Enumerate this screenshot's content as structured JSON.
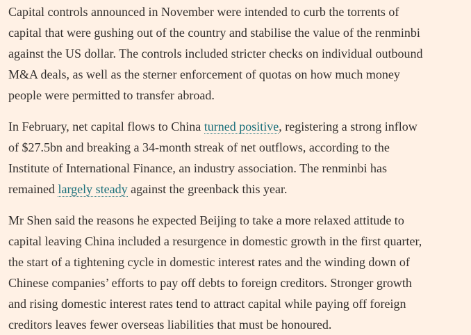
{
  "paragraphs": [
    {
      "lines": [
        [
          "Capital controls announced in November were intended to curb the torrents of"
        ],
        [
          "capital that were gushing out of the country and stabilise the value of the renminbi"
        ],
        [
          "against the US dollar. The controls included stricter checks on individual outbound"
        ],
        [
          "M&A deals, as well as the sterner enforcement of quotas on how much money"
        ],
        [
          "people were permitted to transfer abroad."
        ]
      ]
    },
    {
      "lines": [
        [
          "In February, net capital flows to China ",
          {
            "text": "turned positive",
            "link": true
          },
          ", registering a strong inflow"
        ],
        [
          "of $27.5bn and breaking a 34-month streak of net outflows, according to the"
        ],
        [
          "Institute of International Finance, an industry association. The renminbi has"
        ],
        [
          "remained ",
          {
            "text": "largely steady",
            "link": true
          },
          " against the greenback this year."
        ]
      ]
    },
    {
      "lines": [
        [
          "Mr Shen said the reasons he expected Beijing to take a more relaxed attitude to"
        ],
        [
          "capital leaving China included a resurgence in domestic growth in the first quarter,"
        ],
        [
          "the start of a tightening cycle in domestic interest rates and the winding down of"
        ],
        [
          "Chinese companies’ efforts to pay off debts to foreign creditors. Stronger growth"
        ],
        [
          "and rising domestic interest rates tend to attract capital while paying off foreign"
        ],
        [
          "creditors leaves fewer overseas liabilities that must be honoured."
        ]
      ]
    }
  ]
}
